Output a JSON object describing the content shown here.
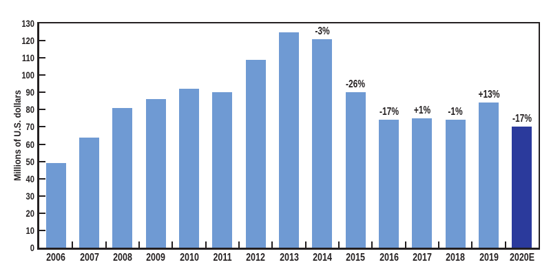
{
  "chart_data": {
    "type": "bar",
    "title": "",
    "xlabel": "",
    "ylabel": "Millions of U.S. dollars",
    "ylim": [
      0,
      130
    ],
    "ytick_step": 10,
    "yticks": [
      0,
      10,
      20,
      30,
      40,
      50,
      60,
      70,
      80,
      90,
      100,
      110,
      120,
      130
    ],
    "categories": [
      "2006",
      "2007",
      "2008",
      "2009",
      "2010",
      "2011",
      "2012",
      "2013",
      "2014",
      "2015",
      "2016",
      "2017",
      "2018",
      "2019",
      "2020E"
    ],
    "values": [
      49,
      64,
      81,
      86,
      92,
      90,
      109,
      125,
      121,
      90,
      74,
      75,
      74,
      84,
      70
    ],
    "annotations": [
      "",
      "",
      "",
      "",
      "",
      "",
      "",
      "",
      "-3%",
      "-26%",
      "-17%",
      "+1%",
      "-1%",
      "+13%",
      "-17%"
    ],
    "highlight_index": 14,
    "grid": false,
    "legend": "none",
    "colors": {
      "bar": "#6f9ad3",
      "highlight_bar": "#2b3a9c",
      "axis": "#231f20",
      "text": "#231f20",
      "background": "#ffffff"
    }
  }
}
